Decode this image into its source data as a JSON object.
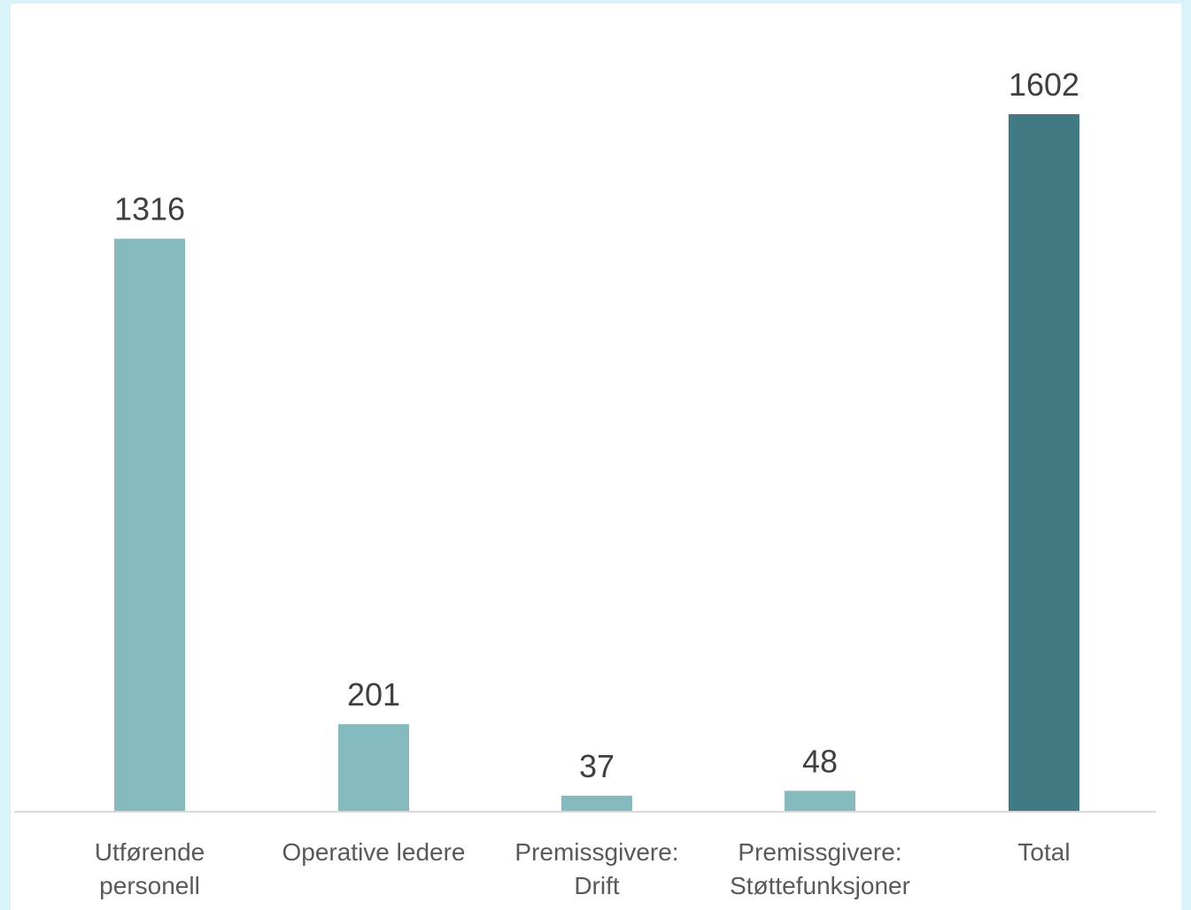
{
  "chart_data": {
    "type": "bar",
    "categories": [
      [
        "Utførende",
        "personell"
      ],
      [
        "Operative ledere"
      ],
      [
        "Premissgivere:",
        "Drift"
      ],
      [
        "Premissgivere:",
        "Støttefunksjoner"
      ],
      [
        "Total"
      ]
    ],
    "values": [
      1316,
      201,
      37,
      48,
      1602
    ],
    "value_labels": [
      "1316",
      "201",
      "37",
      "48",
      "1602"
    ],
    "bar_colors": [
      "#85babe",
      "#85babe",
      "#85babe",
      "#85babe",
      "#417a82"
    ],
    "ylim": [
      0,
      1602
    ],
    "grid": false,
    "legend": "none",
    "title": "",
    "xlabel": "",
    "ylabel": ""
  }
}
